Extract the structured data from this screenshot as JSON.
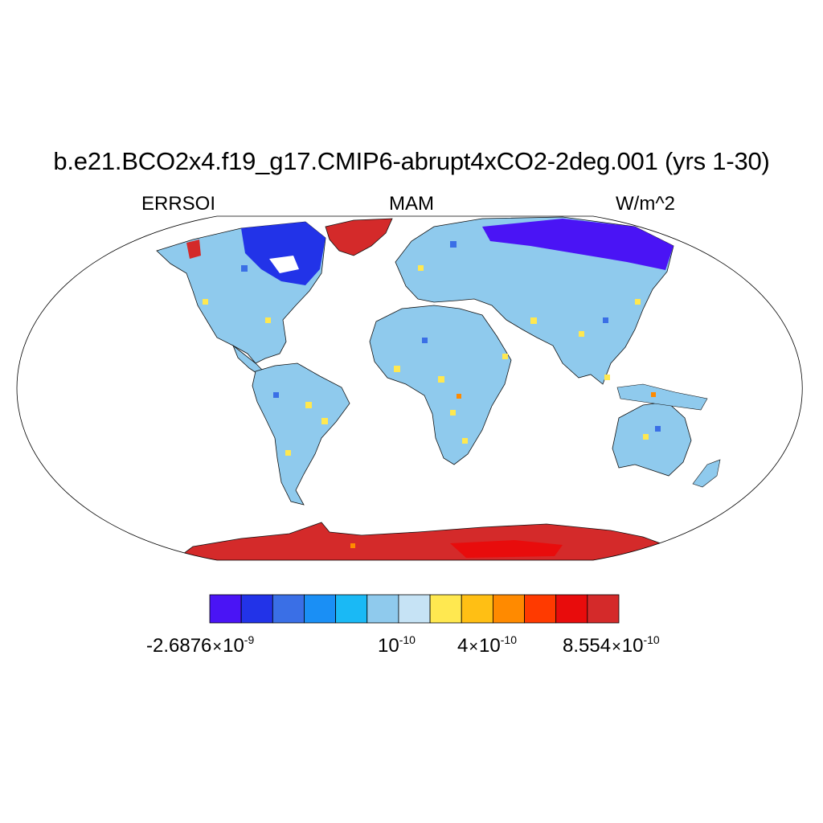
{
  "title": "b.e21.BCO2x4.f19_g17.CMIP6-abrupt4xCO2-2deg.001 (yrs 1-30)",
  "left_label": "ERRSOI",
  "center_label": "MAM",
  "right_label": "W/m^2",
  "colorbar": {
    "colors": [
      "#4a14f5",
      "#2233e8",
      "#3a6fe6",
      "#1a8ff5",
      "#1ab9f5",
      "#8fcaed",
      "#c6e3f5",
      "#ffe850",
      "#ffbf14",
      "#ff8a00",
      "#ff3a00",
      "#e80c0c",
      "#d42a2a"
    ],
    "tick_labels": [
      {
        "mantissa": "-2.6876",
        "base": "10",
        "exponent": "-9"
      },
      {
        "mantissa": "",
        "base": "10",
        "exponent": "-10"
      },
      {
        "mantissa": "4",
        "base": "10",
        "exponent": "-10"
      },
      {
        "mantissa": "8.554",
        "base": "10",
        "exponent": "-10"
      }
    ]
  }
}
